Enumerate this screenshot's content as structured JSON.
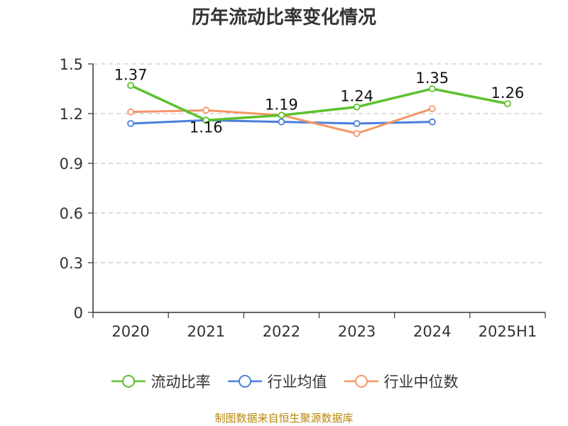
{
  "chart_data": {
    "type": "line",
    "title": "历年流动比率变化情况",
    "categories": [
      "2020",
      "2021",
      "2022",
      "2023",
      "2024",
      "2025H1"
    ],
    "ylim": [
      0,
      1.5
    ],
    "yticks": [
      "0",
      "0.3",
      "0.6",
      "0.9",
      "1.2",
      "1.5"
    ],
    "grid": true,
    "legend_position": "bottom",
    "series": [
      {
        "name": "流动比率",
        "color": "#5cc12f",
        "values": [
          1.37,
          1.16,
          1.19,
          1.24,
          1.35,
          1.26
        ],
        "labels": [
          "1.37",
          "1.16",
          "1.19",
          "1.24",
          "1.35",
          "1.26"
        ]
      },
      {
        "name": "行业均值",
        "color": "#4a7fdc",
        "values": [
          1.14,
          1.16,
          1.15,
          1.14,
          1.15,
          null
        ]
      },
      {
        "name": "行业中位数",
        "color": "#f59567",
        "values": [
          1.21,
          1.22,
          1.19,
          1.08,
          1.23,
          null
        ]
      }
    ]
  },
  "source": "制图数据来自恒生聚源数据库"
}
